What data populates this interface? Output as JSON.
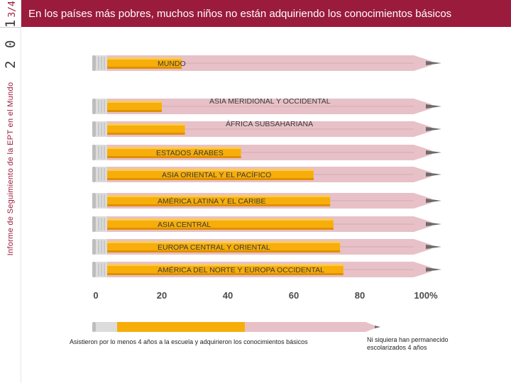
{
  "sidebar": {
    "year": "2 0 1",
    "year_fraction": "3/4",
    "report_title": "Informe de Seguimiento de la EPT en el Mundo"
  },
  "header": {
    "title": "En los países más pobres, muchos niños no están adquiriendo los conocimientos básicos"
  },
  "chart_data": {
    "type": "bar",
    "title": "En los países más pobres, muchos niños no están adquiriendo los conocimientos básicos",
    "categories": [
      "MUNDO",
      "ASIA MERIDIONAL Y OCCIDENTAL",
      "ÁFRICA SUBSAHARIANA",
      "ESTADOS ÁRABES",
      "ASIA ORIENTAL Y EL PACÍFICO",
      "AMÉRICA LATINA Y EL CARIBE",
      "ASIA CENTRAL",
      "EUROPA CENTRAL Y ORIENTAL",
      "AMÉRICA DEL NORTE Y EUROPA OCCIDENTAL"
    ],
    "series": [
      {
        "name": "Asistieron por lo menos 4 años a la escuela y adquirieron los conocimientos básicos",
        "color": "#f7ae0a",
        "values": [
          26,
          20,
          27,
          44,
          66,
          71,
          72,
          74,
          75
        ]
      },
      {
        "name": "Ni siquiera han permanecido escolarizados 4 años",
        "color": "#e7c1c7"
      }
    ],
    "xlim": [
      0,
      100
    ],
    "ticks": [
      "0",
      "20",
      "40",
      "60",
      "80",
      "100%"
    ],
    "tick_values": [
      0,
      20,
      40,
      60,
      80,
      100
    ]
  },
  "legend": {
    "primary_label": "Asistieron por lo menos 4 años a la escuela y adquirieron los conocimientos básicos",
    "secondary_label": "Ni siquiera han permanecido escolarizados 4 años"
  }
}
